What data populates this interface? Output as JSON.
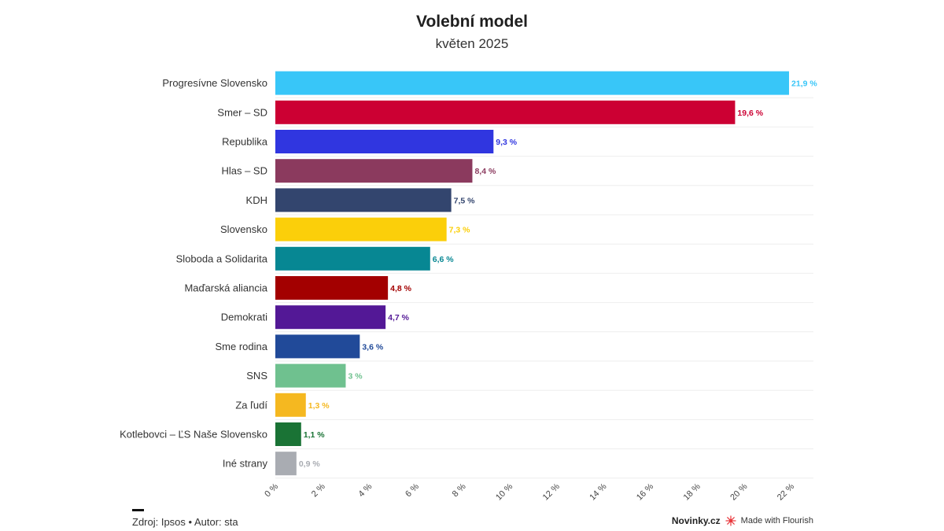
{
  "chart_data": {
    "type": "bar",
    "orientation": "horizontal",
    "title": "Volební model",
    "subtitle": "květen 2025",
    "categories": [
      "Progresívne Slovensko",
      "Smer – SD",
      "Republika",
      "Hlas – SD",
      "KDH",
      "Slovensko",
      "Sloboda a Solidarita",
      "Maďarská aliancia",
      "Demokrati",
      "Sme rodina",
      "SNS",
      "Za ľudí",
      "Kotlebovci – ĽS Naše Slovensko",
      "Iné strany"
    ],
    "values": [
      21.9,
      19.6,
      9.3,
      8.4,
      7.5,
      7.3,
      6.6,
      4.8,
      4.7,
      3.6,
      3,
      1.3,
      1.1,
      0.9
    ],
    "value_labels": [
      "21,9 %",
      "19,6 %",
      "9,3 %",
      "8,4 %",
      "7,5 %",
      "7,3 %",
      "6,6 %",
      "4,8 %",
      "4,7 %",
      "3,6 %",
      "3 %",
      "1,3 %",
      "1,1 %",
      "0,9 %"
    ],
    "colors": [
      "#38c6f8",
      "#cc0033",
      "#3036e0",
      "#8b3a5e",
      "#33456e",
      "#fbcf0a",
      "#078793",
      "#a30000",
      "#531896",
      "#214a99",
      "#6fc18f",
      "#f5b820",
      "#1a7335",
      "#a9acb2"
    ],
    "xlim": [
      0,
      22
    ],
    "x_ticks": [
      "0 %",
      "2 %",
      "4 %",
      "6 %",
      "8 %",
      "10 %",
      "12 %",
      "14 %",
      "16 %",
      "18 %",
      "20 %",
      "22 %"
    ],
    "grid": true,
    "legend": "none"
  },
  "footer": {
    "source": "Zdroj: Ipsos • Autor: sta",
    "publisher": "Novinky.cz",
    "made_with": "Made with Flourish"
  }
}
